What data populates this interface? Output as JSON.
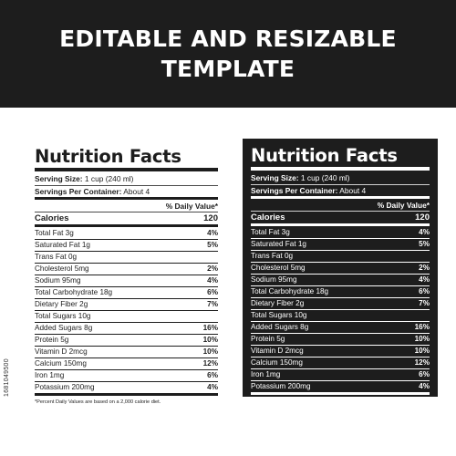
{
  "banner": {
    "line1": "EDITABLE AND RESIZABLE",
    "line2": "TEMPLATE"
  },
  "label": {
    "title": "Nutrition Facts",
    "serving_size_label": "Serving Size:",
    "serving_size_value": "1 cup (240 ml)",
    "servings_label": "Servings Per Container:",
    "servings_value": "About 4",
    "daily_value_header": "% Daily Value*",
    "calories_label": "Calories",
    "calories_value": "120",
    "nutrients": [
      {
        "name": "Total Fat 3g",
        "dv": "4%"
      },
      {
        "name": "Saturated Fat 1g",
        "dv": "5%"
      },
      {
        "name": "Trans Fat 0g",
        "dv": ""
      },
      {
        "name": "Cholesterol 5mg",
        "dv": "2%"
      },
      {
        "name": "Sodium 95mg",
        "dv": "4%"
      },
      {
        "name": "Total Carbohydrate 18g",
        "dv": "6%"
      },
      {
        "name": "Dietary Fiber 2g",
        "dv": "7%"
      },
      {
        "name": "Total Sugars 10g",
        "dv": ""
      },
      {
        "name": "Added Sugars 8g",
        "dv": "16%"
      },
      {
        "name": "Protein 5g",
        "dv": "10%"
      },
      {
        "name": "Vitamin D 2mcg",
        "dv": "10%"
      },
      {
        "name": "Calcium 150mg",
        "dv": "12%"
      },
      {
        "name": "Iron 1mg",
        "dv": "6%"
      },
      {
        "name": "Potassium 200mg",
        "dv": "4%"
      }
    ],
    "footnote": "*Percent Daily Values are based on a 2,000 calorie diet."
  },
  "stock_id": "1681049500",
  "colors": {
    "dark": "#1d1d1d",
    "light": "#ffffff"
  }
}
